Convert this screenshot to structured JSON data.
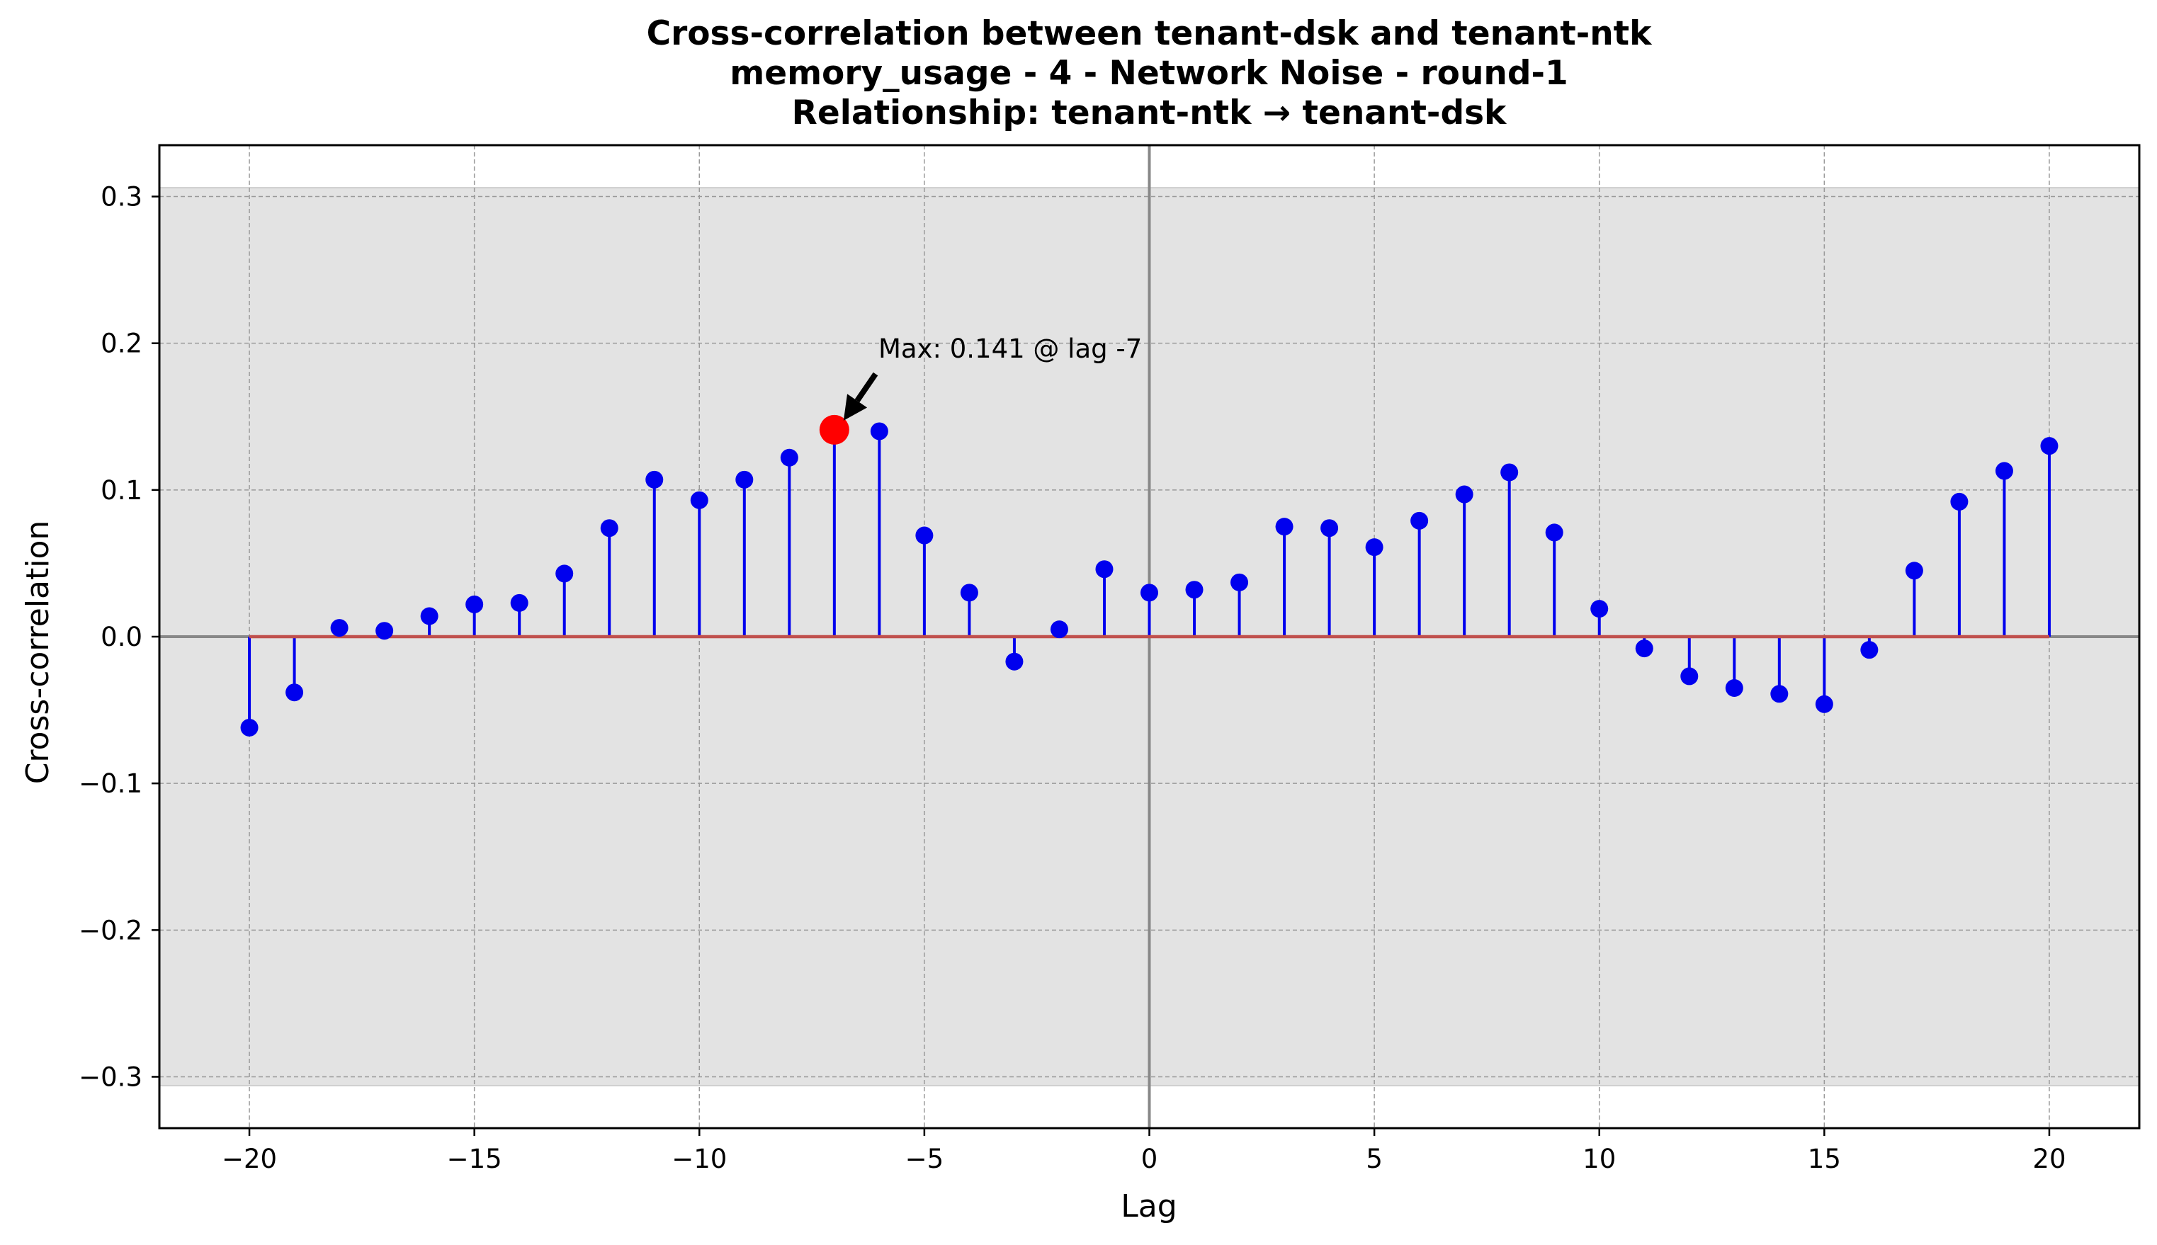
{
  "chart_data": {
    "type": "stem",
    "title_lines": [
      "Cross-correlation between tenant-dsk and tenant-ntk",
      "memory_usage - 4 - Network Noise - round-1",
      "Relationship: tenant-ntk → tenant-dsk"
    ],
    "xlabel": "Lag",
    "ylabel": "Cross-correlation",
    "xlim": [
      -22,
      22
    ],
    "ylim": [
      -0.335,
      0.335
    ],
    "xticks": [
      -20,
      -15,
      -10,
      -5,
      0,
      5,
      10,
      15,
      20
    ],
    "xtick_labels": [
      "−20",
      "−15",
      "−10",
      "−5",
      "0",
      "5",
      "10",
      "15",
      "20"
    ],
    "yticks": [
      -0.3,
      -0.2,
      -0.1,
      0.0,
      0.1,
      0.2,
      0.3
    ],
    "ytick_labels": [
      "−0.3",
      "−0.2",
      "−0.1",
      "0.0",
      "0.1",
      "0.2",
      "0.3"
    ],
    "grid": true,
    "confidence_band": [
      -0.306,
      0.306
    ],
    "x": [
      -20,
      -19,
      -18,
      -17,
      -16,
      -15,
      -14,
      -13,
      -12,
      -11,
      -10,
      -9,
      -8,
      -7,
      -6,
      -5,
      -4,
      -3,
      -2,
      -1,
      0,
      1,
      2,
      3,
      4,
      5,
      6,
      7,
      8,
      9,
      10,
      11,
      12,
      13,
      14,
      15,
      16,
      17,
      18,
      19,
      20
    ],
    "values": [
      -0.062,
      -0.038,
      0.006,
      0.004,
      0.014,
      0.022,
      0.023,
      0.043,
      0.074,
      0.107,
      0.093,
      0.107,
      0.122,
      0.141,
      0.14,
      0.069,
      0.03,
      -0.017,
      0.005,
      0.046,
      0.03,
      0.032,
      0.037,
      0.075,
      0.074,
      0.061,
      0.079,
      0.097,
      0.112,
      0.071,
      0.019,
      -0.008,
      -0.027,
      -0.035,
      -0.039,
      -0.046,
      -0.009,
      0.045,
      0.092,
      0.113,
      0.13
    ],
    "max": {
      "lag": -7,
      "value": 0.141
    },
    "annotation": "Max: 0.141 @ lag -7",
    "colors": {
      "stem": "#0000ee",
      "marker": "#0000ee",
      "max_marker": "#ff0000",
      "baseline": "#c0504d",
      "band": "#e3e3e3",
      "grid": "#9a9a9a",
      "zero_line": "#888888"
    }
  }
}
